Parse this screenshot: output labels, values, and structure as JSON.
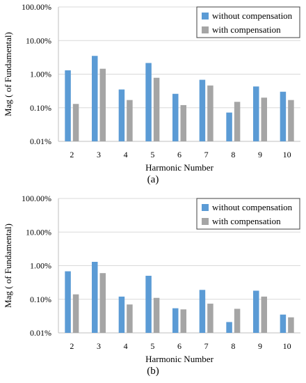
{
  "colors": {
    "without": "#5b9bd5",
    "with": "#a5a5a5",
    "axis": "#bfbfbf",
    "grid": "#d9d9d9"
  },
  "chart_data": [
    {
      "type": "bar",
      "panel_label": "(a)",
      "xlabel": "Harmonic Number",
      "ylabel": "Mag ( of Fundamental)",
      "yscale": "log",
      "ylim": [
        0.0001,
        1
      ],
      "yticks": [
        0.0001,
        0.001,
        0.01,
        0.1,
        1
      ],
      "ytick_labels": [
        "0.01%",
        "0.10%",
        "1.00%",
        "10.00%",
        "100.00%"
      ],
      "categories": [
        "2",
        "3",
        "4",
        "5",
        "6",
        "7",
        "8",
        "9",
        "10"
      ],
      "legend_position": "top-right",
      "grid": true,
      "series": [
        {
          "name": "without compensation",
          "color": "#5b9bd5",
          "values": [
            0.013,
            0.035,
            0.0035,
            0.0215,
            0.0026,
            0.0068,
            0.00072,
            0.0043,
            0.003
          ]
        },
        {
          "name": "with compensation",
          "color": "#a5a5a5",
          "values": [
            0.0013,
            0.0145,
            0.0017,
            0.0078,
            0.0012,
            0.0046,
            0.0015,
            0.002,
            0.0017
          ]
        }
      ]
    },
    {
      "type": "bar",
      "panel_label": "(b)",
      "xlabel": "Harmonic Number",
      "ylabel": "Mag ( of Fundamental)",
      "yscale": "log",
      "ylim": [
        0.0001,
        1
      ],
      "yticks": [
        0.0001,
        0.001,
        0.01,
        0.1,
        1
      ],
      "ytick_labels": [
        "0.01%",
        "0.10%",
        "1.00%",
        "10.00%",
        "100.00%"
      ],
      "categories": [
        "2",
        "3",
        "4",
        "5",
        "6",
        "7",
        "8",
        "9",
        "10"
      ],
      "legend_position": "top-right",
      "grid": true,
      "series": [
        {
          "name": "without compensation",
          "color": "#5b9bd5",
          "values": [
            0.0068,
            0.013,
            0.0012,
            0.005,
            0.00054,
            0.0019,
            0.00021,
            0.0018,
            0.00035
          ]
        },
        {
          "name": "with compensation",
          "color": "#a5a5a5",
          "values": [
            0.0014,
            0.006,
            0.0007,
            0.0011,
            0.0005,
            0.00074,
            0.00052,
            0.0012,
            0.00029
          ]
        }
      ]
    }
  ]
}
